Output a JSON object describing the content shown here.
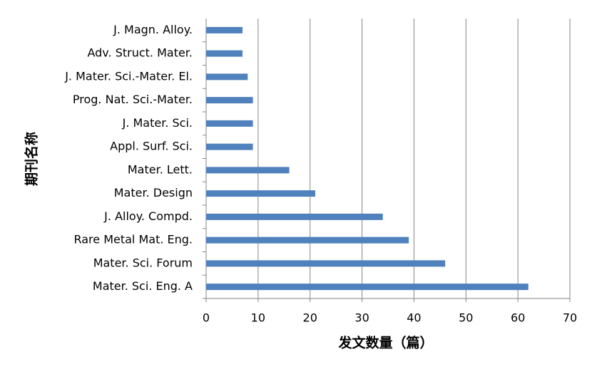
{
  "chart_data": {
    "type": "barh",
    "x_label": "发文数量（篇）",
    "y_label": "期刊名称",
    "categories": [
      "Mater. Sci. Eng. A",
      "Mater. Sci. Forum",
      "Rare Metal Mat. Eng.",
      "J. Alloy. Compd.",
      "Mater. Design",
      "Mater. Lett.",
      "Appl. Surf. Sci.",
      "J. Mater. Sci.",
      "Prog. Nat. Sci.-Mater.",
      "J. Mater. Sci.-Mater. El.",
      "Adv. Struct. Mater.",
      "J. Magn. Alloy."
    ],
    "values": [
      62,
      46,
      39,
      34,
      21,
      16,
      9,
      9,
      9,
      8,
      7,
      7
    ],
    "color": "#4f81bd",
    "xlim": [
      0,
      70
    ],
    "xticks": [
      0,
      10,
      20,
      30,
      40,
      50,
      60,
      70
    ],
    "grid": true
  }
}
